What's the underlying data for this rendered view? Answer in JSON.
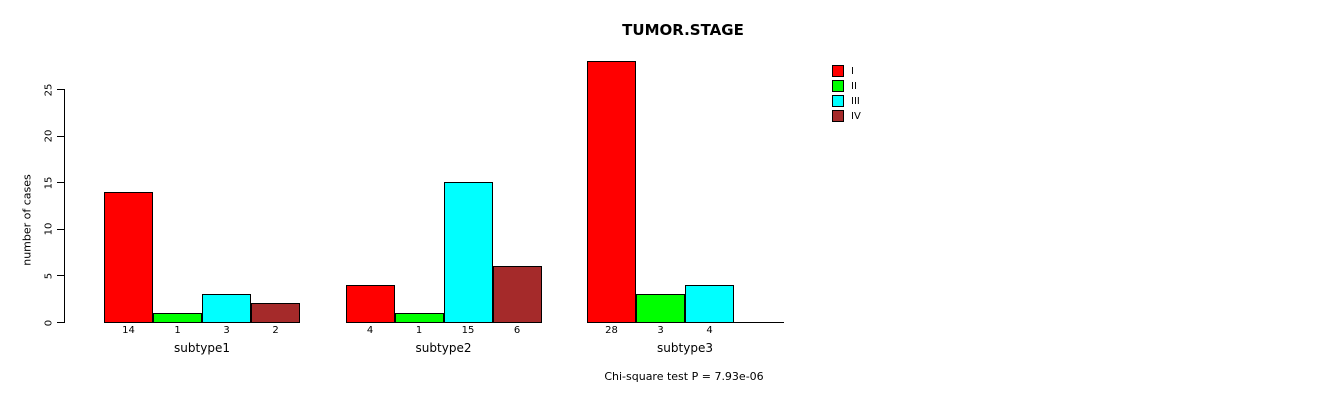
{
  "chart_data": {
    "type": "bar",
    "title": "TUMOR.STAGE",
    "ylabel": "number of cases",
    "xlabel": "",
    "categories": [
      "subtype1",
      "subtype2",
      "subtype3"
    ],
    "series": [
      {
        "name": "I",
        "color": "#FF0000",
        "values": [
          14,
          4,
          28
        ]
      },
      {
        "name": "II",
        "color": "#00FF00",
        "values": [
          1,
          1,
          3
        ]
      },
      {
        "name": "III",
        "color": "#00FFFF",
        "values": [
          3,
          15,
          4
        ]
      },
      {
        "name": "IV",
        "color": "#A52A2A",
        "values": [
          2,
          6,
          0
        ]
      }
    ],
    "bar_value_labels_shown_only_when_nonzero": true,
    "yticks": [
      0,
      5,
      10,
      15,
      20,
      25
    ],
    "ylim": [
      0,
      28
    ],
    "grid": false,
    "legend": {
      "position": "top-right",
      "entries": [
        "I",
        "II",
        "III",
        "IV"
      ]
    },
    "annotation": "Chi-square test P = 7.93e-06"
  }
}
